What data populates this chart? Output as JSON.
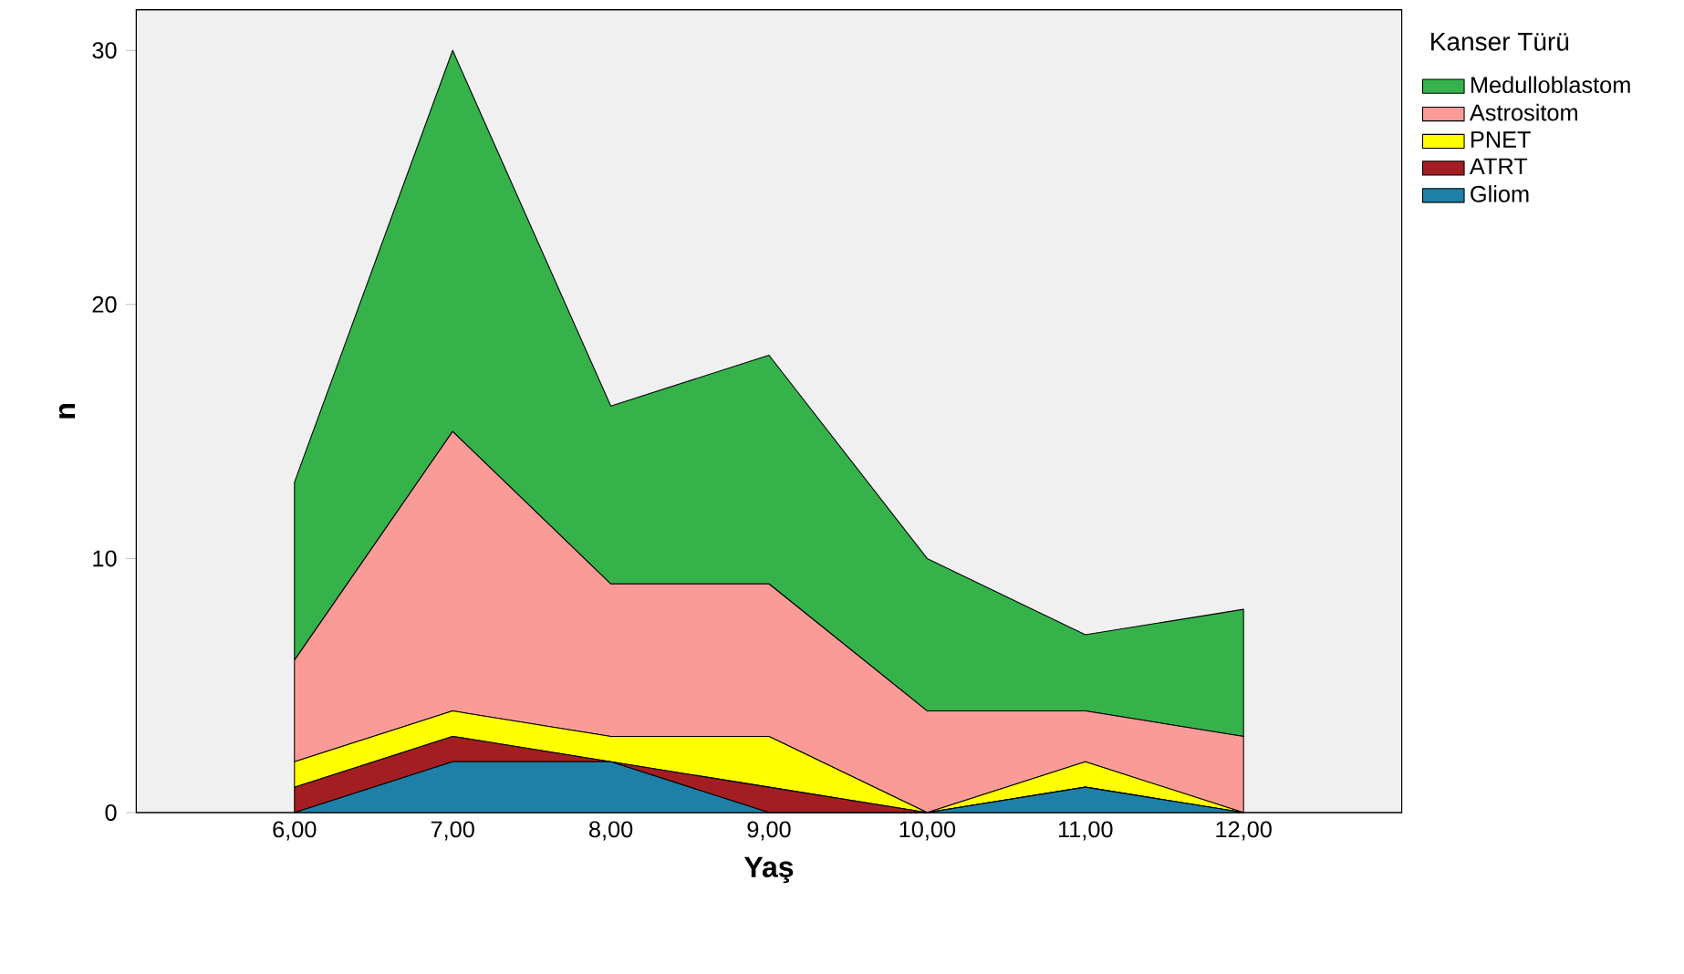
{
  "chart_data": {
    "type": "area",
    "stacked": true,
    "xlabel": "Yaş",
    "ylabel": "n",
    "legend_title": "Kanser Türü",
    "legend": "right",
    "x": [
      6,
      7,
      8,
      9,
      10,
      11,
      12
    ],
    "xlim": [
      5,
      13
    ],
    "ylim": [
      0,
      31.6
    ],
    "xticks": [
      {
        "value": 6,
        "label": "6,00"
      },
      {
        "value": 7,
        "label": "7,00"
      },
      {
        "value": 8,
        "label": "8,00"
      },
      {
        "value": 9,
        "label": "9,00"
      },
      {
        "value": 10,
        "label": "10,00"
      },
      {
        "value": 11,
        "label": "11,00"
      },
      {
        "value": 12,
        "label": "12,00"
      }
    ],
    "yticks": [
      0,
      10,
      20,
      30
    ],
    "series": [
      {
        "name": "Gliom",
        "color": "#1e80a6",
        "values": [
          0,
          2,
          2,
          0,
          0,
          1,
          0
        ]
      },
      {
        "name": "ATRT",
        "color": "#a31e22",
        "values": [
          1,
          1,
          0,
          1,
          0,
          0,
          0
        ]
      },
      {
        "name": "PNET",
        "color": "#ffff00",
        "values": [
          1,
          1,
          1,
          2,
          0,
          1,
          0
        ]
      },
      {
        "name": "Astrositom",
        "color": "#fb9b98",
        "values": [
          4,
          11,
          6,
          6,
          4,
          2,
          3
        ]
      },
      {
        "name": "Medulloblastom",
        "color": "#35b34a",
        "values": [
          7,
          15,
          7,
          9,
          6,
          3,
          5
        ]
      }
    ]
  }
}
